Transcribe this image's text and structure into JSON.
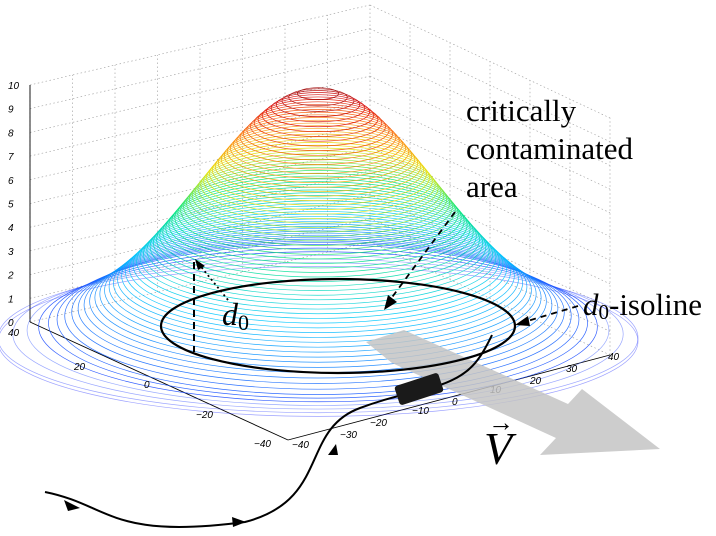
{
  "figure": {
    "annotation_area_lines": [
      "critically",
      "contaminated",
      "area"
    ],
    "isoline_label_symbol": "d",
    "isoline_label_subscript": "0",
    "isoline_label_suffix": "-isoline",
    "distance_label_symbol": "d",
    "distance_label_subscript": "0",
    "velocity_label": "V",
    "z_ticks": [
      "0",
      "1",
      "2",
      "3",
      "4",
      "5",
      "6",
      "7",
      "8",
      "9",
      "10"
    ],
    "y_ticks": [
      "40",
      "20",
      "0",
      "−20",
      "−40"
    ],
    "x_ticks": [
      "−40",
      "−30",
      "−20",
      "−10",
      "0",
      "10",
      "20",
      "30",
      "40"
    ],
    "colors": {
      "surface_low": "#1a1aff",
      "surface_high": "#8b0000",
      "arrow": "#c8c8c8"
    }
  }
}
